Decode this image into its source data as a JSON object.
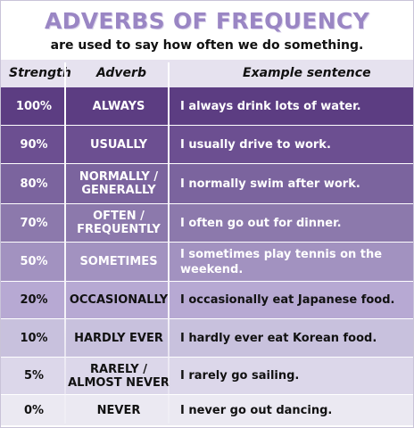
{
  "title": "ADVERBS OF FREQUENCY",
  "subtitle": "are used to say how often we do something.",
  "headers": {
    "strength": "Strength",
    "adverb": "Adverb",
    "example": "Example sentence"
  },
  "rows": [
    {
      "strength": "100%",
      "adverb": "ALWAYS",
      "example": "I always drink lots of water.",
      "color": "#5c3d82",
      "light": true
    },
    {
      "strength": "90%",
      "adverb": "USUALLY",
      "example": "I usually drive to work.",
      "color": "#6c4f91",
      "light": true
    },
    {
      "strength": "80%",
      "adverb": "NORMALLY / GENERALLY",
      "example": "I normally swim after work.",
      "color": "#7b649e",
      "light": true
    },
    {
      "strength": "70%",
      "adverb": "OFTEN / FREQUENTLY",
      "example": "I often go out for dinner.",
      "color": "#8c79ac",
      "light": true
    },
    {
      "strength": "50%",
      "adverb": "SOMETIMES",
      "example": "I sometimes play tennis on the weekend.",
      "color": "#a292c0",
      "light": true
    },
    {
      "strength": "20%",
      "adverb": "OCCASIONALLY",
      "example": "I occasionally  eat Japanese food.",
      "color": "#b7a9d3",
      "light": false
    },
    {
      "strength": "10%",
      "adverb": "HARDLY EVER",
      "example": "I hardly ever eat Korean food.",
      "color": "#c8c1dd",
      "light": false
    },
    {
      "strength": "5%",
      "adverb": "RARELY / ALMOST NEVER",
      "example": "I rarely go sailing.",
      "color": "#dcd7ea",
      "light": false
    },
    {
      "strength": "0%",
      "adverb": "NEVER",
      "example": "I never go out dancing.",
      "color": "#ebe9f2",
      "light": false
    }
  ]
}
